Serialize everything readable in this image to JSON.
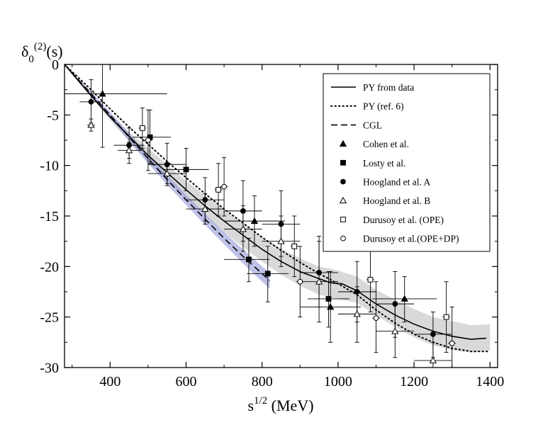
{
  "chart_data": {
    "type": "scatter",
    "title": "",
    "ylabel": {
      "base": "δ",
      "sub": "0",
      "sup": "(2)",
      "tail": "(s)"
    },
    "xlabel": {
      "base": "s",
      "sup": "1/2",
      "tail": " (MeV)"
    },
    "xlim": [
      280,
      1420
    ],
    "ylim": [
      -30,
      0
    ],
    "xticks": [
      400,
      600,
      800,
      1000,
      1200,
      1400
    ],
    "yticks": [
      0,
      -5,
      -10,
      -15,
      -20,
      -25,
      -30
    ],
    "xtick_labels": [
      "400",
      "600",
      "800",
      "1000",
      "1200",
      "1400"
    ],
    "ytick_labels": [
      "0",
      "-5",
      "-10",
      "-15",
      "-20",
      "-25",
      "-30"
    ],
    "legend_position": "top-right",
    "grid": false,
    "band": {
      "name": "PY uncertainty band",
      "x": [
        280,
        350,
        400,
        450,
        500,
        550,
        600,
        650,
        700,
        750,
        800,
        850,
        900,
        950,
        1000,
        1050,
        1100,
        1150,
        1200,
        1250,
        1300,
        1350,
        1400
      ],
      "upper": [
        0,
        -2.9,
        -4.9,
        -6.7,
        -8.3,
        -9.9,
        -11.5,
        -13.0,
        -14.4,
        -15.8,
        -17.1,
        -18.2,
        -19.2,
        -20.0,
        -20.4,
        -21.0,
        -22.3,
        -23.3,
        -24.2,
        -25.0,
        -25.4,
        -25.8,
        -25.7
      ],
      "lower": [
        0,
        -3.2,
        -5.5,
        -7.6,
        -9.6,
        -11.5,
        -13.3,
        -15.0,
        -16.6,
        -18.1,
        -19.5,
        -20.8,
        -21.9,
        -22.8,
        -23.2,
        -23.6,
        -24.8,
        -26.0,
        -27.0,
        -27.8,
        -28.3,
        -28.5,
        -28.3
      ]
    },
    "lines": [
      {
        "name": "PY from data",
        "style": "solid",
        "color": "#000000",
        "x": [
          280,
          350,
          400,
          450,
          500,
          550,
          600,
          650,
          700,
          750,
          800,
          850,
          900,
          950,
          980,
          1000,
          1010,
          1050,
          1100,
          1150,
          1200,
          1250,
          1300,
          1350,
          1390
        ],
        "y": [
          0,
          -3.1,
          -5.2,
          -7.1,
          -9.0,
          -10.7,
          -12.4,
          -14.0,
          -15.5,
          -16.9,
          -18.3,
          -19.5,
          -20.5,
          -21.2,
          -21.6,
          -21.7,
          -21.7,
          -22.4,
          -23.7,
          -24.8,
          -25.7,
          -26.4,
          -26.9,
          -27.2,
          -27.1
        ]
      },
      {
        "name": "PY (ref. 6)",
        "style": "dotted",
        "color": "#000000",
        "x": [
          280,
          350,
          400,
          450,
          500,
          550,
          600,
          650,
          700,
          750,
          800,
          850,
          900,
          950,
          1000,
          1050,
          1100,
          1150,
          1200,
          1250,
          1300,
          1350,
          1400
        ],
        "y": [
          0,
          -2.5,
          -4.4,
          -6.2,
          -7.9,
          -9.6,
          -11.2,
          -12.8,
          -14.3,
          -15.7,
          -17.1,
          -18.4,
          -19.6,
          -20.7,
          -21.7,
          -22.8,
          -24.3,
          -25.6,
          -26.7,
          -27.5,
          -28.1,
          -28.4,
          -28.4
        ]
      },
      {
        "name": "CGL",
        "style": "dashed",
        "color": "#000000",
        "x": [
          280,
          350,
          400,
          450,
          500,
          550,
          600,
          650,
          700,
          750,
          800,
          820
        ],
        "y": [
          0,
          -2.9,
          -5.0,
          -7.2,
          -9.3,
          -11.4,
          -13.4,
          -15.3,
          -17.2,
          -19.0,
          -20.7,
          -21.4
        ]
      }
    ],
    "cgl_band": {
      "name": "CGL band",
      "x": [
        280,
        350,
        400,
        450,
        500,
        550,
        600,
        650,
        700,
        750,
        800,
        820
      ],
      "upper": [
        0,
        -2.7,
        -4.7,
        -6.8,
        -8.9,
        -10.9,
        -12.9,
        -14.8,
        -16.6,
        -18.3,
        -20.0,
        -20.6
      ],
      "lower": [
        0,
        -3.1,
        -5.3,
        -7.6,
        -9.8,
        -11.9,
        -13.9,
        -15.9,
        -17.8,
        -19.7,
        -21.5,
        -22.2
      ]
    },
    "series": [
      {
        "name": "Cohen et al.",
        "marker": "triangle-filled",
        "points": [
          {
            "x": 380,
            "y": -2.9,
            "xlo": 270,
            "xhi": 550,
            "ylo": -8.2,
            "yhi": 1.5
          },
          {
            "x": 780,
            "y": -15.5,
            "xlo": 700,
            "xhi": 860,
            "ylo": -18.0,
            "yhi": -13.0
          },
          {
            "x": 980,
            "y": -24.0,
            "xlo": 900,
            "xhi": 1060,
            "ylo": -27.5,
            "yhi": -20.5
          },
          {
            "x": 1175,
            "y": -23.2,
            "xlo": 1090,
            "xhi": 1260,
            "ylo": -25.5,
            "yhi": -21.0
          }
        ]
      },
      {
        "name": "Losty et al.",
        "marker": "square-filled",
        "points": [
          {
            "x": 505,
            "y": -7.2,
            "xlo": 460,
            "xhi": 560,
            "ylo": -9.8,
            "yhi": -4.5
          },
          {
            "x": 600,
            "y": -10.4,
            "xlo": 540,
            "xhi": 660,
            "ylo": -12.5,
            "yhi": -8.3
          },
          {
            "x": 765,
            "y": -19.3,
            "xlo": 700,
            "xhi": 820,
            "ylo": -21.5,
            "yhi": -17.2
          },
          {
            "x": 815,
            "y": -20.7,
            "xlo": 760,
            "xhi": 870,
            "ylo": -23.5,
            "yhi": -18.0
          },
          {
            "x": 975,
            "y": -23.2,
            "xlo": 920,
            "xhi": 1030,
            "ylo": -26.0,
            "yhi": -20.5
          }
        ]
      },
      {
        "name": "Hoogland et al. A",
        "marker": "circle-filled",
        "points": [
          {
            "x": 350,
            "y": -3.7,
            "xlo": 320,
            "xhi": 380,
            "ylo": -5.8,
            "yhi": -1.5
          },
          {
            "x": 450,
            "y": -8.0,
            "xlo": 410,
            "xhi": 490,
            "ylo": -9.8,
            "yhi": -6.3
          },
          {
            "x": 550,
            "y": -9.9,
            "xlo": 500,
            "xhi": 600,
            "ylo": -12.0,
            "yhi": -7.8
          },
          {
            "x": 650,
            "y": -13.4,
            "xlo": 600,
            "xhi": 700,
            "ylo": -15.5,
            "yhi": -11.2
          },
          {
            "x": 750,
            "y": -14.5,
            "xlo": 700,
            "xhi": 800,
            "ylo": -17.5,
            "yhi": -11.5
          },
          {
            "x": 850,
            "y": -15.8,
            "xlo": 800,
            "xhi": 900,
            "ylo": -19.0,
            "yhi": -12.5
          },
          {
            "x": 950,
            "y": -20.6,
            "xlo": 900,
            "xhi": 1000,
            "ylo": -24.0,
            "yhi": -17.0
          },
          {
            "x": 1050,
            "y": -22.5,
            "xlo": 1000,
            "xhi": 1100,
            "ylo": -25.5,
            "yhi": -19.5
          },
          {
            "x": 1150,
            "y": -23.7,
            "xlo": 1100,
            "xhi": 1200,
            "ylo": -27.0,
            "yhi": -20.5
          },
          {
            "x": 1250,
            "y": -26.7,
            "xlo": 1200,
            "xhi": 1300,
            "ylo": -29.0,
            "yhi": -24.5
          }
        ]
      },
      {
        "name": "Hoogland et al. B",
        "marker": "triangle-open",
        "points": [
          {
            "x": 350,
            "y": -6.0,
            "xlo": 340,
            "xhi": 360,
            "ylo": -6.6,
            "yhi": -5.4
          },
          {
            "x": 450,
            "y": -8.5,
            "xlo": 420,
            "xhi": 480,
            "ylo": -9.3,
            "yhi": -7.7
          },
          {
            "x": 550,
            "y": -10.8,
            "xlo": 500,
            "xhi": 600,
            "ylo": -11.8,
            "yhi": -9.8
          },
          {
            "x": 650,
            "y": -14.3,
            "xlo": 600,
            "xhi": 700,
            "ylo": -15.8,
            "yhi": -12.8
          },
          {
            "x": 750,
            "y": -16.3,
            "xlo": 700,
            "xhi": 800,
            "ylo": -18.5,
            "yhi": -14.0
          },
          {
            "x": 850,
            "y": -17.5,
            "xlo": 800,
            "xhi": 900,
            "ylo": -20.0,
            "yhi": -15.0
          },
          {
            "x": 950,
            "y": -21.5,
            "xlo": 900,
            "xhi": 1000,
            "ylo": -25.5,
            "yhi": -17.5
          },
          {
            "x": 1050,
            "y": -24.7,
            "xlo": 1000,
            "xhi": 1100,
            "ylo": -27.5,
            "yhi": -22.0
          },
          {
            "x": 1150,
            "y": -26.4,
            "xlo": 1100,
            "xhi": 1200,
            "ylo": -29.0,
            "yhi": -23.8
          },
          {
            "x": 1250,
            "y": -29.3,
            "xlo": 1200,
            "xhi": 1300,
            "ylo": -31.0,
            "yhi": -27.5
          }
        ]
      },
      {
        "name": "Durusoy et al. (OPE)",
        "marker": "square-open",
        "points": [
          {
            "x": 485,
            "y": -6.3,
            "xlo": 475,
            "xhi": 495,
            "ylo": -8.3,
            "yhi": -4.3
          },
          {
            "x": 685,
            "y": -12.4,
            "xlo": 675,
            "xhi": 695,
            "ylo": -15.0,
            "yhi": -9.8
          },
          {
            "x": 885,
            "y": -18.0,
            "xlo": 875,
            "xhi": 895,
            "ylo": -21.0,
            "yhi": -15.0
          },
          {
            "x": 1085,
            "y": -21.3,
            "xlo": 1075,
            "xhi": 1095,
            "ylo": -24.5,
            "yhi": -18.0
          },
          {
            "x": 1285,
            "y": -25.0,
            "xlo": 1275,
            "xhi": 1295,
            "ylo": -28.5,
            "yhi": -21.5
          }
        ]
      },
      {
        "name": "Durusoy et al.(OPE+DP)",
        "marker": "circle-open",
        "points": [
          {
            "x": 500,
            "y": -7.5,
            "xlo": 490,
            "xhi": 510,
            "ylo": -10.5,
            "yhi": -4.5
          },
          {
            "x": 700,
            "y": -12.1,
            "xlo": 690,
            "xhi": 710,
            "ylo": -15.0,
            "yhi": -9.2
          },
          {
            "x": 900,
            "y": -21.5,
            "xlo": 890,
            "xhi": 910,
            "ylo": -25.0,
            "yhi": -18.0
          },
          {
            "x": 1100,
            "y": -25.1,
            "xlo": 1090,
            "xhi": 1110,
            "ylo": -28.5,
            "yhi": -21.5
          },
          {
            "x": 1300,
            "y": -27.6,
            "xlo": 1290,
            "xhi": 1310,
            "ylo": -31.0,
            "yhi": -24.0
          }
        ]
      }
    ],
    "legend": [
      {
        "label": "PY from data",
        "kind": "solid"
      },
      {
        "label": "PY (ref. 6)",
        "kind": "dotted"
      },
      {
        "label": "CGL",
        "kind": "dashed"
      },
      {
        "label": "Cohen et al.",
        "kind": "triangle-filled"
      },
      {
        "label": "Losty et al.",
        "kind": "square-filled"
      },
      {
        "label": "Hoogland et al. A",
        "kind": "circle-filled"
      },
      {
        "label": "Hoogland et al. B",
        "kind": "triangle-open"
      },
      {
        "label": "Durusoy et al. (OPE)",
        "kind": "square-open"
      },
      {
        "label": "Durusoy et al.(OPE+DP)",
        "kind": "circle-open"
      }
    ],
    "colors": {
      "band": "#d9d9d9",
      "cgl_band": "#8a8fd6",
      "ink": "#000000"
    }
  }
}
